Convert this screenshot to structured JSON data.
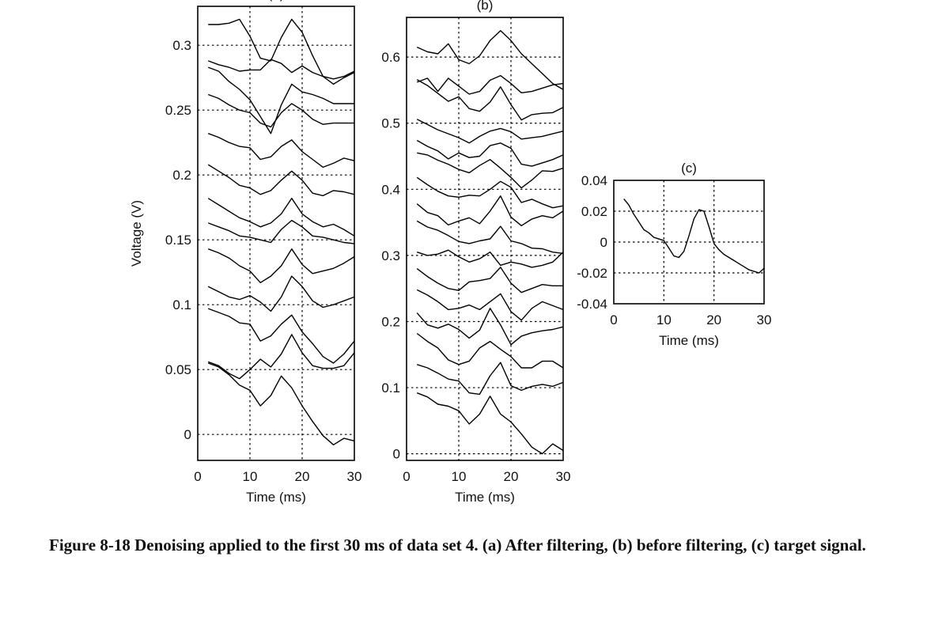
{
  "caption": "Figure 8-18 Denoising applied to the first 30 ms of data set 4. (a) After filtering, (b) before filtering, (c) target signal.",
  "chart_data": [
    {
      "type": "line",
      "title": "(a)",
      "xlabel": "Time (ms)",
      "ylabel": "Voltage (V)",
      "xlim": [
        0,
        30
      ],
      "ylim": [
        -0.02,
        0.33
      ],
      "grid": true,
      "x_ticks": [
        "0",
        "10",
        "20",
        "30"
      ],
      "y_ticks": [
        "0",
        "0.05",
        "0.1",
        "0.15",
        "0.2",
        "0.25",
        "0.3"
      ],
      "x": [
        2,
        4,
        6,
        8,
        10,
        12,
        14,
        16,
        18,
        20,
        22,
        24,
        26,
        28,
        30
      ],
      "series": [
        {
          "values": [
            0.055,
            0.052,
            0.046,
            0.038,
            0.034,
            0.022,
            0.03,
            0.045,
            0.036,
            0.022,
            0.01,
            -0.001,
            -0.008,
            -0.003,
            -0.005
          ]
        },
        {
          "values": [
            0.056,
            0.053,
            0.047,
            0.043,
            0.05,
            0.058,
            0.052,
            0.062,
            0.077,
            0.063,
            0.053,
            0.051,
            0.051,
            0.053,
            0.063
          ]
        },
        {
          "values": [
            0.097,
            0.094,
            0.091,
            0.086,
            0.085,
            0.072,
            0.076,
            0.085,
            0.092,
            0.079,
            0.07,
            0.06,
            0.055,
            0.062,
            0.072
          ]
        },
        {
          "values": [
            0.114,
            0.11,
            0.106,
            0.104,
            0.107,
            0.102,
            0.095,
            0.106,
            0.122,
            0.114,
            0.103,
            0.098,
            0.1,
            0.103,
            0.106
          ]
        },
        {
          "values": [
            0.143,
            0.14,
            0.136,
            0.13,
            0.126,
            0.117,
            0.122,
            0.13,
            0.143,
            0.131,
            0.124,
            0.126,
            0.128,
            0.132,
            0.137
          ]
        },
        {
          "values": [
            0.163,
            0.16,
            0.157,
            0.153,
            0.152,
            0.15,
            0.148,
            0.158,
            0.165,
            0.16,
            0.153,
            0.152,
            0.15,
            0.148,
            0.147
          ]
        },
        {
          "values": [
            0.182,
            0.177,
            0.172,
            0.167,
            0.164,
            0.16,
            0.163,
            0.17,
            0.182,
            0.17,
            0.164,
            0.16,
            0.162,
            0.158,
            0.153
          ]
        },
        {
          "values": [
            0.208,
            0.203,
            0.198,
            0.192,
            0.19,
            0.185,
            0.188,
            0.196,
            0.203,
            0.196,
            0.186,
            0.184,
            0.188,
            0.187,
            0.185
          ]
        },
        {
          "values": [
            0.232,
            0.229,
            0.225,
            0.222,
            0.221,
            0.212,
            0.214,
            0.222,
            0.227,
            0.218,
            0.212,
            0.206,
            0.209,
            0.213,
            0.211
          ]
        },
        {
          "values": [
            0.262,
            0.259,
            0.254,
            0.25,
            0.248,
            0.24,
            0.237,
            0.248,
            0.255,
            0.25,
            0.243,
            0.239,
            0.24,
            0.24,
            0.24
          ]
        },
        {
          "values": [
            0.283,
            0.28,
            0.272,
            0.266,
            0.258,
            0.245,
            0.232,
            0.254,
            0.27,
            0.264,
            0.262,
            0.259,
            0.255,
            0.255,
            0.255
          ]
        },
        {
          "values": [
            0.288,
            0.285,
            0.283,
            0.28,
            0.281,
            0.281,
            0.289,
            0.286,
            0.279,
            0.284,
            0.279,
            0.276,
            0.274,
            0.276,
            0.28
          ]
        },
        {
          "values": [
            0.316,
            0.316,
            0.317,
            0.32,
            0.307,
            0.29,
            0.288,
            0.306,
            0.32,
            0.31,
            0.292,
            0.276,
            0.27,
            0.275,
            0.279
          ]
        }
      ]
    },
    {
      "type": "line",
      "title": "(b)",
      "xlabel": "Time (ms)",
      "ylabel": "",
      "xlim": [
        0,
        30
      ],
      "ylim": [
        -0.01,
        0.66
      ],
      "grid": true,
      "x_ticks": [
        "0",
        "10",
        "20",
        "30"
      ],
      "y_ticks": [
        "0",
        "0.1",
        "0.2",
        "0.3",
        "0.4",
        "0.5",
        "0.6"
      ],
      "x": [
        2,
        4,
        6,
        8,
        10,
        12,
        14,
        16,
        18,
        20,
        22,
        24,
        26,
        28,
        30
      ],
      "series": [
        {
          "values": [
            0.092,
            0.086,
            0.075,
            0.072,
            0.065,
            0.045,
            0.06,
            0.087,
            0.06,
            0.048,
            0.03,
            0.01,
            0.0,
            0.015,
            0.005
          ]
        },
        {
          "values": [
            0.135,
            0.13,
            0.122,
            0.113,
            0.11,
            0.092,
            0.09,
            0.118,
            0.138,
            0.103,
            0.096,
            0.102,
            0.105,
            0.102,
            0.108
          ]
        },
        {
          "values": [
            0.182,
            0.17,
            0.16,
            0.142,
            0.135,
            0.14,
            0.16,
            0.17,
            0.158,
            0.147,
            0.13,
            0.13,
            0.14,
            0.14,
            0.13
          ]
        },
        {
          "values": [
            0.213,
            0.195,
            0.19,
            0.196,
            0.188,
            0.175,
            0.187,
            0.22,
            0.195,
            0.165,
            0.178,
            0.183,
            0.186,
            0.188,
            0.192
          ]
        },
        {
          "values": [
            0.248,
            0.24,
            0.23,
            0.218,
            0.22,
            0.225,
            0.218,
            0.23,
            0.242,
            0.215,
            0.202,
            0.22,
            0.23,
            0.224,
            0.218
          ]
        },
        {
          "values": [
            0.28,
            0.268,
            0.258,
            0.25,
            0.247,
            0.26,
            0.262,
            0.265,
            0.282,
            0.258,
            0.244,
            0.25,
            0.256,
            0.254,
            0.254
          ]
        },
        {
          "values": [
            0.305,
            0.3,
            0.302,
            0.308,
            0.298,
            0.29,
            0.295,
            0.305,
            0.285,
            0.29,
            0.287,
            0.282,
            0.285,
            0.29,
            0.305
          ]
        },
        {
          "values": [
            0.352,
            0.343,
            0.338,
            0.33,
            0.321,
            0.318,
            0.322,
            0.325,
            0.344,
            0.322,
            0.318,
            0.311,
            0.31,
            0.305,
            0.303
          ]
        },
        {
          "values": [
            0.378,
            0.365,
            0.36,
            0.346,
            0.352,
            0.357,
            0.348,
            0.367,
            0.39,
            0.358,
            0.345,
            0.355,
            0.36,
            0.357,
            0.367
          ]
        },
        {
          "values": [
            0.418,
            0.407,
            0.397,
            0.39,
            0.388,
            0.391,
            0.39,
            0.4,
            0.412,
            0.403,
            0.38,
            0.385,
            0.378,
            0.372,
            0.375
          ]
        },
        {
          "values": [
            0.455,
            0.452,
            0.444,
            0.438,
            0.43,
            0.425,
            0.436,
            0.445,
            0.432,
            0.418,
            0.402,
            0.414,
            0.428,
            0.427,
            0.432
          ]
        },
        {
          "values": [
            0.474,
            0.465,
            0.458,
            0.446,
            0.455,
            0.448,
            0.45,
            0.466,
            0.47,
            0.462,
            0.438,
            0.435,
            0.44,
            0.445,
            0.452
          ]
        },
        {
          "values": [
            0.506,
            0.498,
            0.49,
            0.484,
            0.478,
            0.47,
            0.48,
            0.488,
            0.492,
            0.487,
            0.476,
            0.478,
            0.48,
            0.484,
            0.488
          ]
        },
        {
          "values": [
            0.566,
            0.557,
            0.545,
            0.533,
            0.54,
            0.522,
            0.518,
            0.532,
            0.555,
            0.528,
            0.505,
            0.513,
            0.515,
            0.516,
            0.524
          ]
        },
        {
          "values": [
            0.562,
            0.568,
            0.548,
            0.568,
            0.556,
            0.544,
            0.548,
            0.565,
            0.572,
            0.56,
            0.546,
            0.548,
            0.553,
            0.558,
            0.56
          ]
        },
        {
          "values": [
            0.615,
            0.608,
            0.605,
            0.62,
            0.596,
            0.59,
            0.602,
            0.625,
            0.64,
            0.625,
            0.605,
            0.59,
            0.575,
            0.56,
            0.551
          ]
        }
      ]
    },
    {
      "type": "line",
      "title": "(c)",
      "xlabel": "Time (ms)",
      "ylabel": "",
      "xlim": [
        0,
        30
      ],
      "ylim": [
        -0.04,
        0.04
      ],
      "grid": true,
      "x_ticks": [
        "0",
        "10",
        "20",
        "30"
      ],
      "y_ticks": [
        "-0.04",
        "-0.02",
        "0",
        "0.02",
        "0.04"
      ],
      "x": [
        2,
        3,
        4,
        5,
        6,
        7,
        8,
        9,
        10,
        11,
        12,
        13,
        14,
        15,
        16,
        17,
        18,
        19,
        20,
        21,
        22,
        23,
        24,
        25,
        26,
        27,
        28,
        29,
        30
      ],
      "series": [
        {
          "values": [
            0.028,
            0.024,
            0.018,
            0.013,
            0.008,
            0.006,
            0.003,
            0.002,
            0.001,
            -0.004,
            -0.009,
            -0.01,
            -0.006,
            0.004,
            0.015,
            0.021,
            0.02,
            0.01,
            -0.001,
            -0.005,
            -0.008,
            -0.01,
            -0.012,
            -0.014,
            -0.016,
            -0.018,
            -0.019,
            -0.02,
            -0.017
          ]
        }
      ]
    }
  ]
}
